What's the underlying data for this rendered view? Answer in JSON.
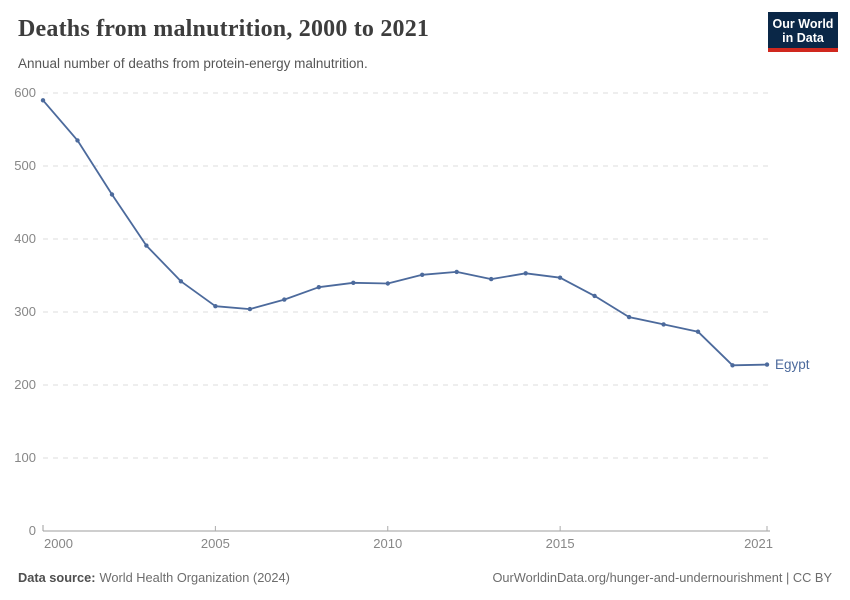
{
  "header": {
    "title": "Deaths from malnutrition, 2000 to 2021",
    "subtitle": "Annual number of deaths from protein-energy malnutrition.",
    "logo": {
      "line1": "Our World",
      "line2": "in Data",
      "bg_color": "#0a2747",
      "accent_color": "#d0281e"
    }
  },
  "chart_data": {
    "type": "line",
    "title": "Deaths from malnutrition, 2000 to 2021",
    "subtitle": "Annual number of deaths from protein-energy malnutrition.",
    "x": [
      2000,
      2001,
      2002,
      2003,
      2004,
      2005,
      2006,
      2007,
      2008,
      2009,
      2010,
      2011,
      2012,
      2013,
      2014,
      2015,
      2016,
      2017,
      2018,
      2019,
      2020,
      2021
    ],
    "series": [
      {
        "name": "Egypt",
        "color": "#4c6a9c",
        "values": [
          590,
          535,
          461,
          391,
          342,
          308,
          304,
          317,
          334,
          340,
          339,
          351,
          355,
          345,
          353,
          347,
          322,
          293,
          283,
          273,
          227,
          228
        ]
      }
    ],
    "xticks": [
      2000,
      2005,
      2010,
      2015,
      2021
    ],
    "yticks": [
      0,
      100,
      200,
      300,
      400,
      500,
      600
    ],
    "xlim": [
      2000,
      2021
    ],
    "ylim": [
      0,
      600
    ],
    "grid": "horizontal-dashed",
    "legend_position": "end-of-line-label"
  },
  "footer": {
    "source_label": "Data source:",
    "source_value": "World Health Organization (2024)",
    "credit": "OurWorldinData.org/hunger-and-undernourishment | CC BY"
  }
}
